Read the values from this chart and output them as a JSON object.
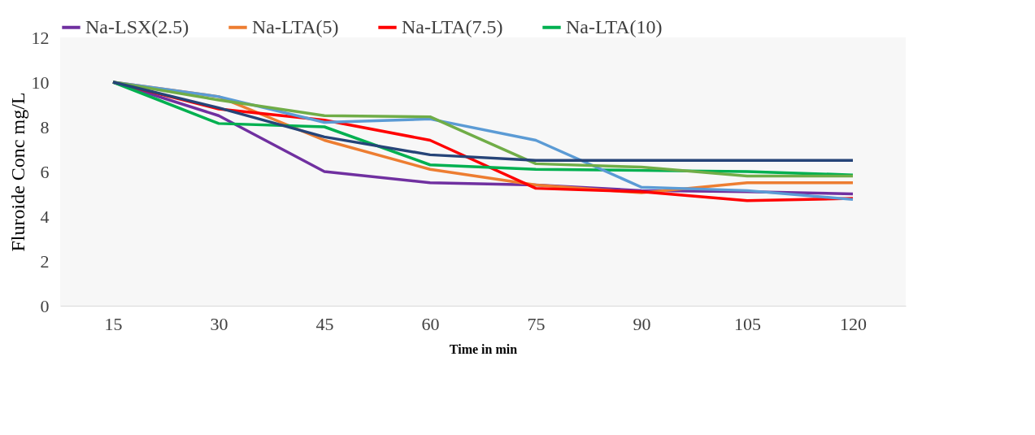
{
  "chart_data": {
    "type": "line",
    "xlabel": "Time in min",
    "ylabel": "Fluroide Conc mg/L",
    "categories": [
      "15",
      "30",
      "45",
      "60",
      "75",
      "90",
      "105",
      "120"
    ],
    "ylim": [
      0,
      12
    ],
    "yticks": [
      0,
      2,
      4,
      6,
      8,
      10,
      12
    ],
    "grid": false,
    "legend": "top",
    "marker": "none",
    "line_style": "solid",
    "series": [
      {
        "name": "Na-LSX(2.5)",
        "color": "#7030a0",
        "values": [
          10,
          8.5,
          6.0,
          5.5,
          5.4,
          5.15,
          5.1,
          5.0
        ]
      },
      {
        "name": "Na-LTA(5)",
        "color": "#ed7d31",
        "values": [
          10,
          9.35,
          7.4,
          6.1,
          5.4,
          5.05,
          5.5,
          5.5
        ]
      },
      {
        "name": "Na-LTA(7.5)",
        "color": "#ff0000",
        "values": [
          10,
          8.8,
          8.3,
          7.4,
          5.25,
          5.1,
          4.7,
          4.8
        ]
      },
      {
        "name": "Na-LTA(10)",
        "color": "#00b050",
        "values": [
          10,
          8.15,
          8.0,
          6.3,
          6.1,
          6.05,
          6.0,
          5.85
        ]
      },
      {
        "color": "#5b9bd5",
        "values": [
          10,
          9.35,
          8.2,
          8.35,
          7.4,
          5.3,
          5.15,
          4.75
        ]
      },
      {
        "color": "#70ad47",
        "values": [
          10,
          9.2,
          8.5,
          8.45,
          6.35,
          6.2,
          5.8,
          5.8
        ]
      },
      {
        "color": "#264478",
        "values": [
          10,
          8.85,
          7.55,
          6.75,
          6.5,
          6.5,
          6.5,
          6.5
        ]
      }
    ]
  }
}
